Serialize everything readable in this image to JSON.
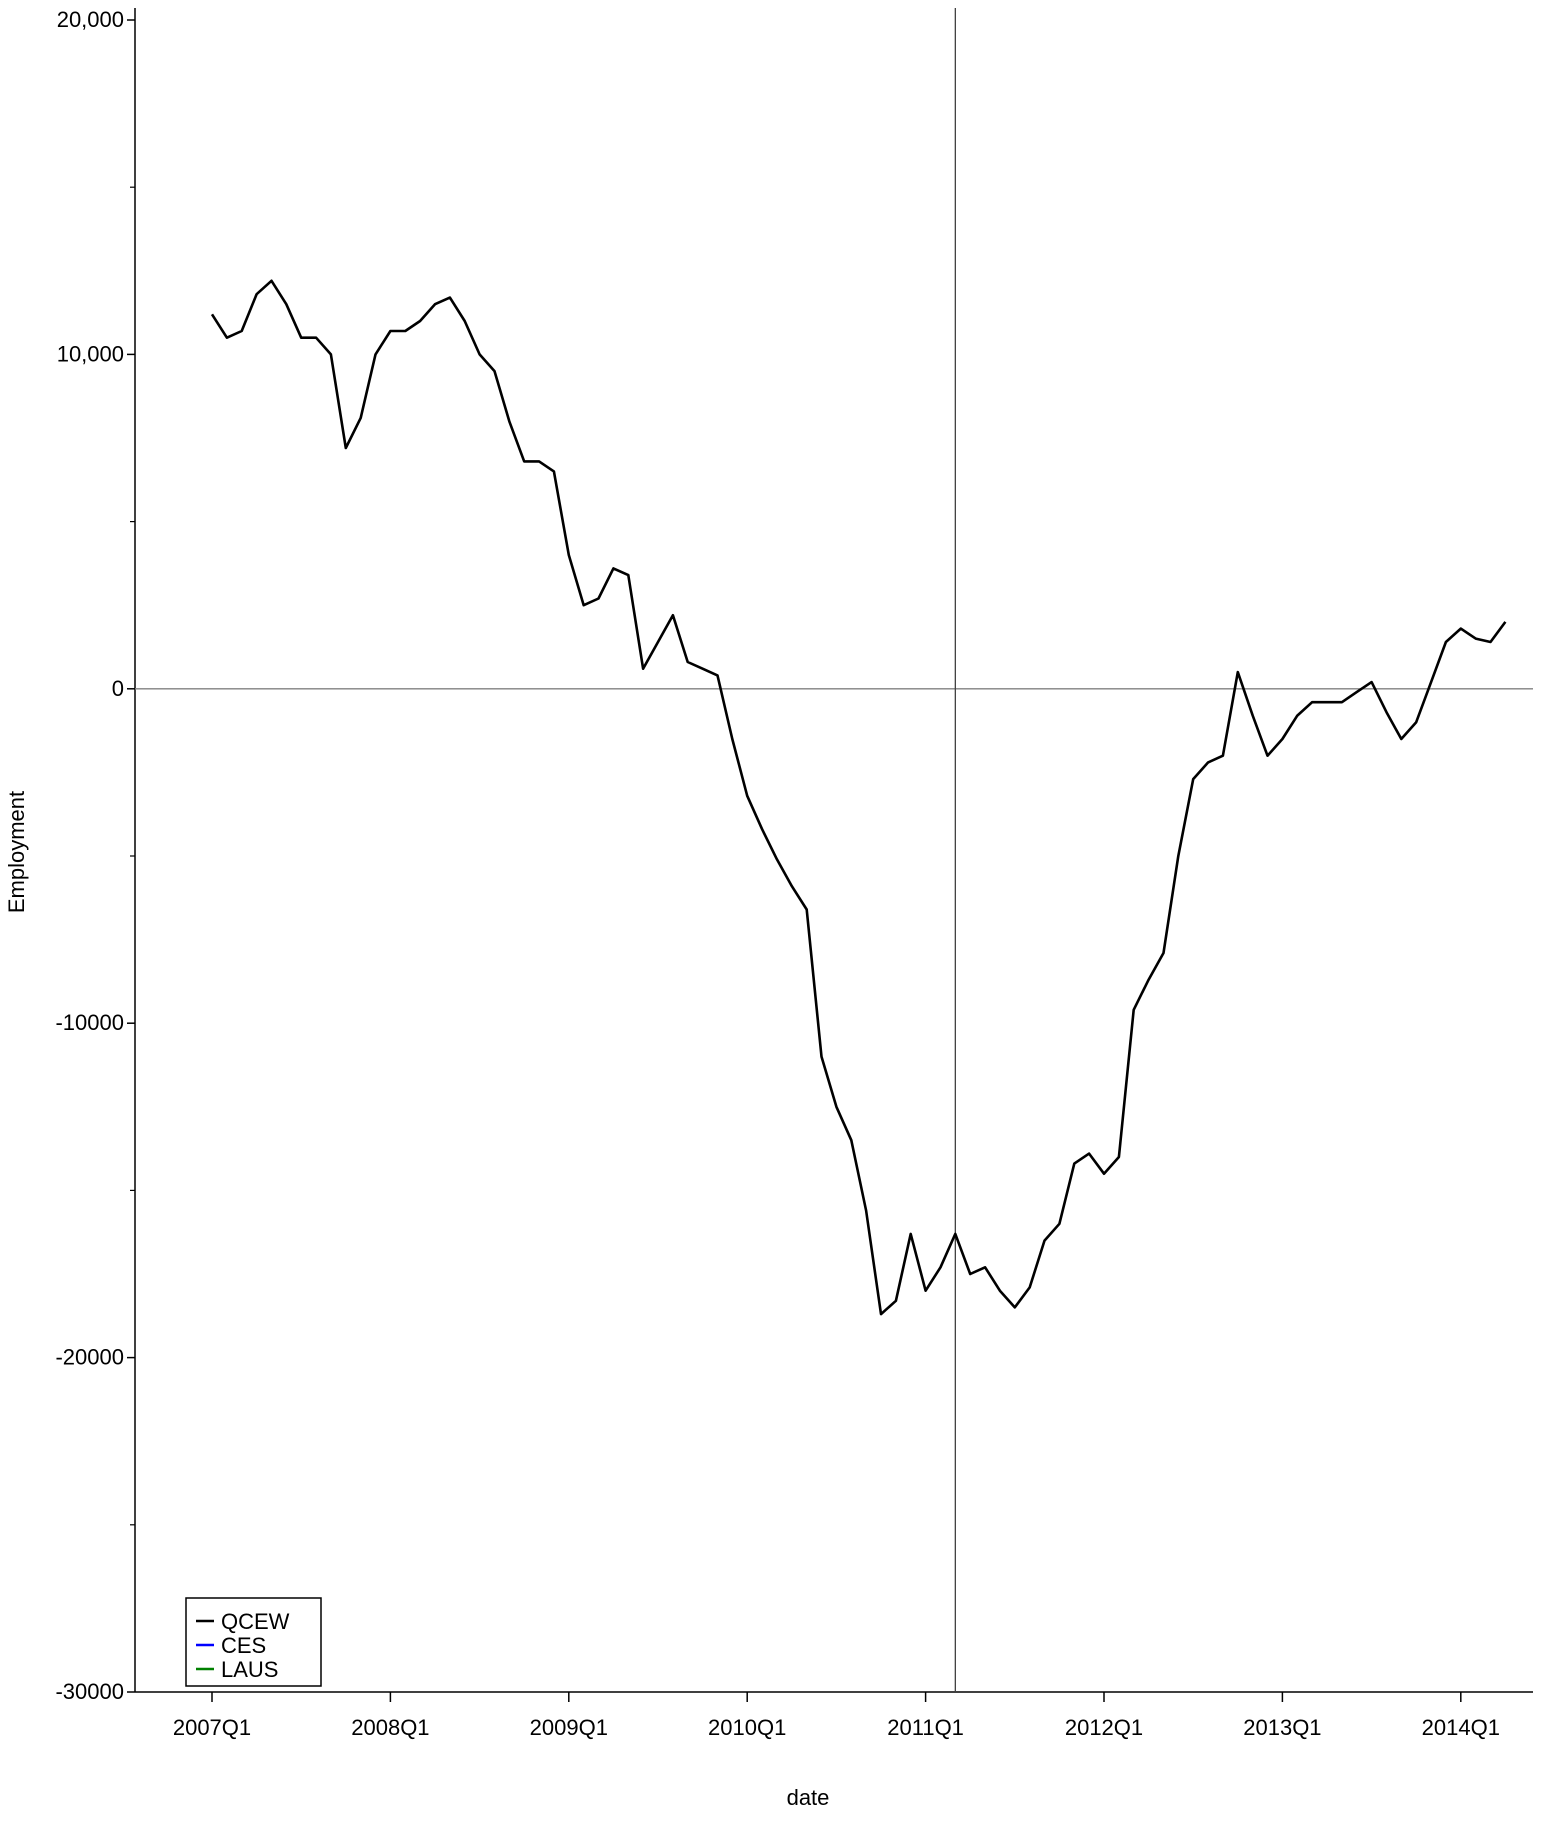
{
  "chart_data": {
    "type": "line",
    "xlabel": "date",
    "ylabel": "Employment",
    "x_axis": {
      "ticks": [
        "2007Q1",
        "2008Q1",
        "2009Q1",
        "2010Q1",
        "2011Q1",
        "2012Q1",
        "2013Q1",
        "2014Q1"
      ],
      "range": [
        "2007-01",
        "2014-04"
      ]
    },
    "y_axis": {
      "ticks": [
        20000,
        10000,
        0,
        -10000,
        -20000,
        -30000
      ],
      "tick_labels": [
        "20,000",
        "10,000",
        "0",
        "-10000",
        "-20000",
        "-30000"
      ],
      "minor_ticks": [
        15000,
        5000,
        -5000,
        -15000,
        -25000
      ],
      "range": [
        -30000,
        20000
      ]
    },
    "reference_lines": {
      "horizontal_y": 0,
      "vertical_x": "2011-03"
    },
    "grid": false,
    "legend_position": "bottom-left",
    "series": [
      {
        "name": "QCEW",
        "color": "#000000",
        "points": [
          [
            "2007-01",
            11200
          ],
          [
            "2007-02",
            10500
          ],
          [
            "2007-03",
            10700
          ],
          [
            "2007-04",
            11800
          ],
          [
            "2007-05",
            12200
          ],
          [
            "2007-06",
            11500
          ],
          [
            "2007-07",
            10500
          ],
          [
            "2007-08",
            10500
          ],
          [
            "2007-09",
            10000
          ],
          [
            "2007-10",
            7200
          ],
          [
            "2007-11",
            8100
          ],
          [
            "2007-12",
            10000
          ],
          [
            "2008-01",
            10700
          ],
          [
            "2008-02",
            10700
          ],
          [
            "2008-03",
            11000
          ],
          [
            "2008-04",
            11500
          ],
          [
            "2008-05",
            11700
          ],
          [
            "2008-06",
            11000
          ],
          [
            "2008-07",
            10000
          ],
          [
            "2008-08",
            9500
          ],
          [
            "2008-09",
            8000
          ],
          [
            "2008-10",
            6800
          ],
          [
            "2008-11",
            6800
          ],
          [
            "2008-12",
            6500
          ],
          [
            "2009-01",
            4000
          ],
          [
            "2009-02",
            2500
          ],
          [
            "2009-03",
            2700
          ],
          [
            "2009-04",
            3600
          ],
          [
            "2009-05",
            3400
          ],
          [
            "2009-06",
            600
          ],
          [
            "2009-07",
            1400
          ],
          [
            "2009-08",
            2200
          ],
          [
            "2009-09",
            800
          ],
          [
            "2009-10",
            600
          ],
          [
            "2009-11",
            400
          ],
          [
            "2009-12",
            -1500
          ],
          [
            "2010-01",
            -3200
          ],
          [
            "2010-02",
            -4200
          ],
          [
            "2010-03",
            -5100
          ],
          [
            "2010-04",
            -5900
          ],
          [
            "2010-05",
            -6600
          ],
          [
            "2010-06",
            -11000
          ],
          [
            "2010-07",
            -12500
          ],
          [
            "2010-08",
            -13500
          ],
          [
            "2010-09",
            -15600
          ],
          [
            "2010-10",
            -18700
          ],
          [
            "2010-11",
            -18300
          ],
          [
            "2010-12",
            -16300
          ],
          [
            "2011-01",
            -18000
          ],
          [
            "2011-02",
            -17300
          ],
          [
            "2011-03",
            -16300
          ],
          [
            "2011-04",
            -17500
          ],
          [
            "2011-05",
            -17300
          ],
          [
            "2011-06",
            -18000
          ],
          [
            "2011-07",
            -18500
          ],
          [
            "2011-08",
            -17900
          ],
          [
            "2011-09",
            -16500
          ],
          [
            "2011-10",
            -16000
          ],
          [
            "2011-11",
            -14200
          ],
          [
            "2011-12",
            -13900
          ],
          [
            "2012-01",
            -14500
          ],
          [
            "2012-02",
            -14000
          ],
          [
            "2012-03",
            -9600
          ],
          [
            "2012-04",
            -8700
          ],
          [
            "2012-05",
            -7900
          ],
          [
            "2012-06",
            -5000
          ],
          [
            "2012-07",
            -2700
          ],
          [
            "2012-08",
            -2200
          ],
          [
            "2012-09",
            -2000
          ],
          [
            "2012-10",
            500
          ],
          [
            "2012-11",
            -800
          ],
          [
            "2012-12",
            -2000
          ],
          [
            "2013-01",
            -1500
          ],
          [
            "2013-02",
            -800
          ],
          [
            "2013-03",
            -400
          ],
          [
            "2013-04",
            -400
          ],
          [
            "2013-05",
            -400
          ],
          [
            "2013-06",
            -100
          ],
          [
            "2013-07",
            200
          ],
          [
            "2013-08",
            -700
          ],
          [
            "2013-09",
            -1500
          ],
          [
            "2013-10",
            -1000
          ],
          [
            "2013-11",
            200
          ],
          [
            "2013-12",
            1400
          ],
          [
            "2014-01",
            1800
          ],
          [
            "2014-02",
            1500
          ],
          [
            "2014-03",
            1400
          ],
          [
            "2014-04",
            2000
          ]
        ]
      }
    ]
  },
  "legend": {
    "items": [
      {
        "label": "QCEW",
        "color": "#000000"
      },
      {
        "label": "CES",
        "color": "#0000ff"
      },
      {
        "label": "LAUS",
        "color": "#008000"
      }
    ]
  }
}
